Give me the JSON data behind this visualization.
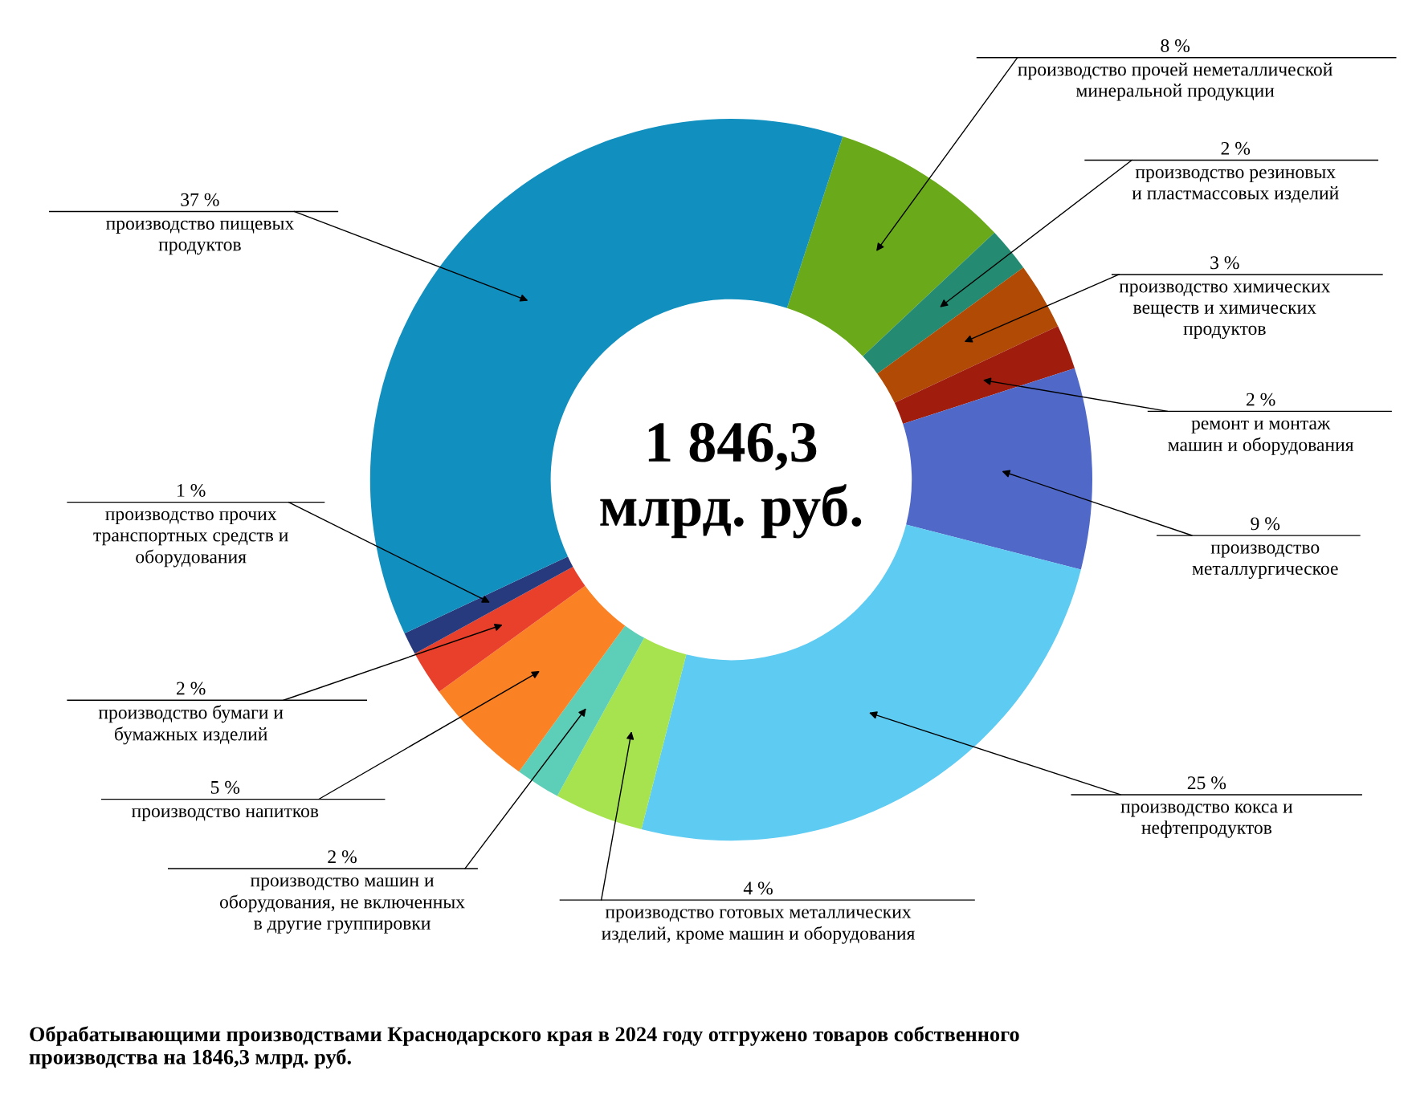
{
  "chart_data": {
    "type": "donut",
    "categories": [
      "производство прочей неметаллической\nминеральной продукции",
      "производство резиновых\nи пластмассовых изделий",
      "производство химических\nвеществ и химических\nпродуктов",
      "ремонт и монтаж\nмашин и оборудования",
      "производство\nметаллургическое",
      "производство кокса и\nнефтепродуктов",
      "производство готовых металлических\nизделий, кроме машин и оборудования",
      "производство машин и\nоборудования, не включенных\nв другие группировки",
      "производство напитков",
      "производство бумаги и\nбумажных изделий",
      "производство прочих\nтранспортных средств и\nоборудования",
      "производство пищевых\nпродуктов"
    ],
    "values": [
      8,
      2,
      3,
      2,
      9,
      25,
      4,
      2,
      5,
      2,
      1,
      37
    ],
    "value_labels": [
      "8 %",
      "2 %",
      "3 %",
      "2 %",
      "9 %",
      "25 %",
      "4 %",
      "2 %",
      "5 %",
      "2 %",
      "1 %",
      "37 %"
    ],
    "colors": [
      "#6aaa1a",
      "#258a72",
      "#b04a05",
      "#a01c0c",
      "#5068c8",
      "#5ecbf2",
      "#a6e34f",
      "#5dcfb8",
      "#fb8224",
      "#e8402a",
      "#283a7e",
      "#1190bf"
    ],
    "annotations": [
      "1 846,3\nмлрд. руб.",
      "Обрабатывающими производствами Краснодарского края в 2024 году отгружено товаров собственного\nпроизводства на 1846,3 млрд. руб."
    ],
    "legend": false
  }
}
